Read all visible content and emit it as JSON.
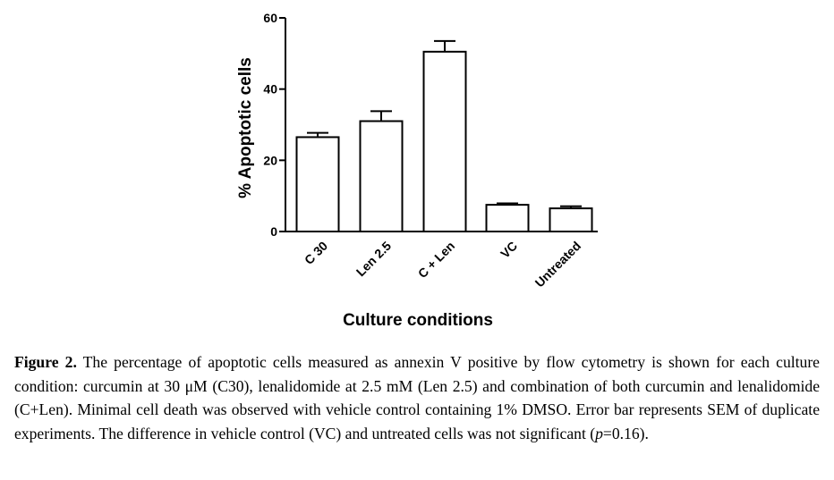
{
  "chart_data": {
    "type": "bar",
    "categories": [
      "C 30",
      "Len 2.5",
      "C + Len",
      "VC",
      "Untreated"
    ],
    "values": [
      26.5,
      31,
      50.5,
      7.5,
      6.5
    ],
    "errors": [
      1.2,
      2.8,
      3.0,
      0.4,
      0.6
    ],
    "ylabel": "% Apoptotic cells",
    "xlabel": "Culture conditions",
    "ylim": [
      0,
      60
    ],
    "yticks": [
      0,
      20,
      40,
      60
    ],
    "grid": false,
    "bar_fill": "#ffffff",
    "bar_stroke": "#000000"
  },
  "caption": {
    "label": "Figure 2.",
    "part1": " The percentage of apoptotic cells measured as annexin V positive by flow cytometry is shown for each culture condition: curcumin at 30 μM (C30), lenalidomide at 2.5 mM (Len 2.5) and combination of both curcumin and lenalidomide (C+Len). Minimal cell death was observed with vehicle control containing 1% DMSO. Error bar represents SEM of duplicate experiments. The difference in vehicle control (VC) and untreated cells was not significant (",
    "p_symbol": "p",
    "part2": "=0.16)."
  }
}
